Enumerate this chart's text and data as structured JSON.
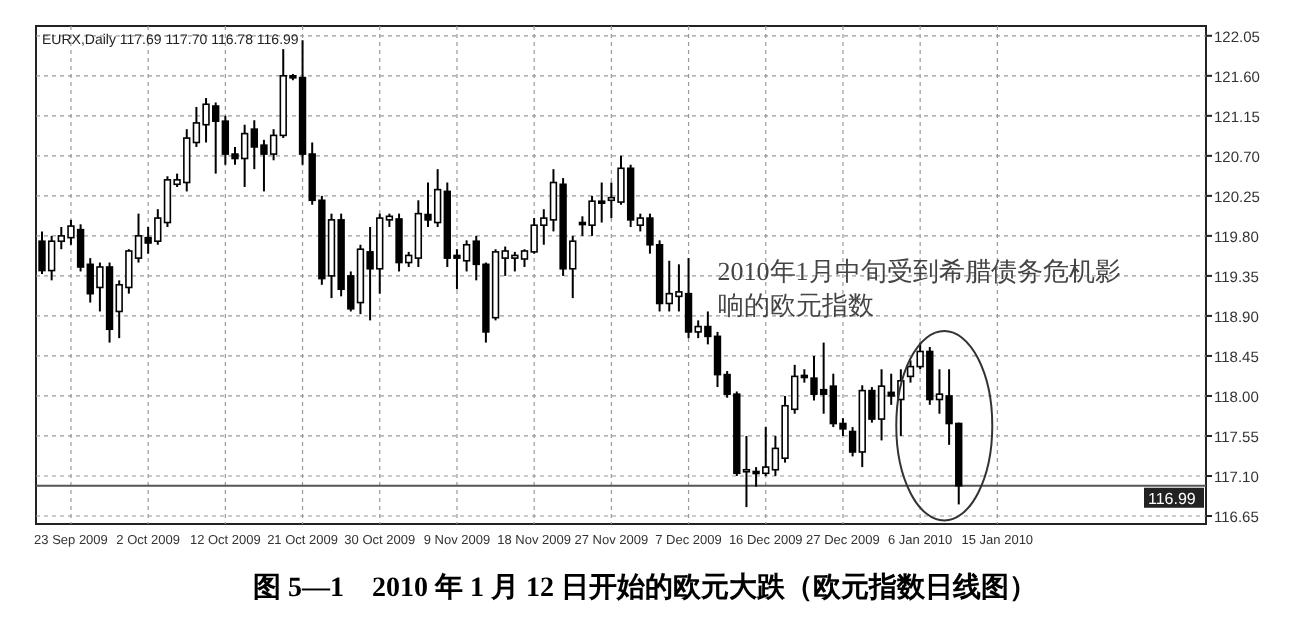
{
  "chart_data": {
    "type": "candlestick",
    "title": "图 5—1　2010 年 1 月 12 日开始的欧元大跌（欧元指数日线图）",
    "annotations": [
      "EURX,Daily 117.69 117.70 116.78 116.99",
      "2010年1月中旬受到希腊债务危机影响的欧元指数"
    ],
    "categories": [
      null,
      null,
      null,
      "23 Sep 2009",
      null,
      null,
      null,
      null,
      null,
      null,
      null,
      "2 Oct 2009",
      null,
      null,
      null,
      null,
      null,
      null,
      null,
      "12 Oct 2009",
      null,
      null,
      null,
      null,
      null,
      null,
      null,
      "21 Oct 2009",
      null,
      null,
      null,
      null,
      null,
      null,
      null,
      "30 Oct 2009",
      null,
      null,
      null,
      null,
      null,
      null,
      null,
      "9 Nov 2009",
      null,
      null,
      null,
      null,
      null,
      null,
      null,
      "18 Nov 2009",
      null,
      null,
      null,
      null,
      null,
      null,
      null,
      "27 Nov 2009",
      null,
      null,
      null,
      null,
      null,
      null,
      null,
      "7 Dec 2009",
      null,
      null,
      null,
      null,
      null,
      null,
      null,
      "16 Dec 2009",
      null,
      null,
      null,
      null,
      null,
      null,
      null,
      "27 Dec 2009",
      null,
      null,
      null,
      null,
      null,
      null,
      null,
      "6 Jan 2010",
      null,
      null,
      null,
      null,
      null,
      null,
      null,
      "15 Jan 2010",
      null,
      null,
      null,
      null,
      null,
      null,
      null,
      null,
      null,
      null,
      null,
      null,
      null,
      null,
      null,
      null,
      null,
      null,
      null,
      null,
      null
    ],
    "ohlc": [
      [
        119.74,
        119.85,
        119.37,
        119.41
      ],
      [
        119.41,
        119.8,
        119.3,
        119.74
      ],
      [
        119.74,
        119.9,
        119.65,
        119.8
      ],
      [
        119.78,
        119.98,
        119.7,
        119.91
      ],
      [
        119.87,
        119.93,
        119.4,
        119.45
      ],
      [
        119.48,
        119.55,
        119.05,
        119.15
      ],
      [
        119.22,
        119.5,
        118.95,
        119.45
      ],
      [
        119.45,
        119.5,
        118.6,
        118.75
      ],
      [
        118.95,
        119.3,
        118.65,
        119.25
      ],
      [
        119.22,
        119.65,
        119.15,
        119.63
      ],
      [
        119.55,
        120.05,
        119.5,
        119.8
      ],
      [
        119.78,
        119.9,
        119.6,
        119.72
      ],
      [
        119.74,
        120.1,
        119.7,
        120
      ],
      [
        119.95,
        120.47,
        119.9,
        120.43
      ],
      [
        120.38,
        120.5,
        120.35,
        120.43
      ],
      [
        120.4,
        121,
        120.3,
        120.9
      ],
      [
        120.85,
        121.25,
        120.8,
        121.07
      ],
      [
        121.05,
        121.35,
        120.85,
        121.28
      ],
      [
        121.26,
        121.3,
        120.5,
        121.09
      ],
      [
        121.09,
        121.15,
        120.6,
        120.72
      ],
      [
        120.72,
        120.8,
        120.6,
        120.67
      ],
      [
        120.67,
        121.05,
        120.35,
        120.95
      ],
      [
        121,
        121.1,
        120.55,
        120.8
      ],
      [
        120.82,
        120.88,
        120.3,
        120.72
      ],
      [
        120.72,
        121,
        120.65,
        120.93
      ],
      [
        120.93,
        121.9,
        120.9,
        121.6
      ],
      [
        121.6,
        121.62,
        121.55,
        121.58
      ],
      [
        121.58,
        122,
        120.6,
        120.72
      ],
      [
        120.72,
        120.85,
        120.15,
        120.2
      ],
      [
        120.2,
        120.25,
        119.25,
        119.32
      ],
      [
        119.35,
        120.05,
        119.1,
        119.98
      ],
      [
        119.98,
        120.05,
        119.12,
        119.2
      ],
      [
        119.35,
        119.4,
        118.95,
        118.98
      ],
      [
        119.05,
        119.7,
        118.92,
        119.65
      ],
      [
        119.62,
        119.9,
        118.85,
        119.43
      ],
      [
        119.43,
        120.05,
        119.15,
        120
      ],
      [
        119.98,
        120.05,
        119.9,
        120.02
      ],
      [
        119.99,
        120.05,
        119.4,
        119.5
      ],
      [
        119.5,
        119.62,
        119.45,
        119.58
      ],
      [
        119.55,
        120.2,
        119.45,
        120.05
      ],
      [
        120.04,
        120.4,
        119.9,
        119.98
      ],
      [
        119.95,
        120.55,
        119.9,
        120.32
      ],
      [
        120.3,
        120.4,
        119.45,
        119.55
      ],
      [
        119.58,
        119.65,
        119.2,
        119.55
      ],
      [
        119.52,
        119.75,
        119.4,
        119.7
      ],
      [
        119.74,
        119.8,
        119.3,
        119.48
      ],
      [
        119.48,
        119.5,
        118.6,
        118.72
      ],
      [
        118.88,
        119.65,
        118.85,
        119.62
      ],
      [
        119.55,
        119.68,
        119.35,
        119.63
      ],
      [
        119.55,
        119.62,
        119.4,
        119.58
      ],
      [
        119.54,
        119.65,
        119.45,
        119.63
      ],
      [
        119.62,
        120,
        119.6,
        119.92
      ],
      [
        119.92,
        120.1,
        119.7,
        120
      ],
      [
        119.98,
        120.55,
        119.85,
        120.4
      ],
      [
        120.38,
        120.45,
        119.35,
        119.43
      ],
      [
        119.43,
        119.8,
        119.1,
        119.74
      ],
      [
        119.95,
        120.02,
        119.8,
        119.93
      ],
      [
        119.92,
        120.25,
        119.8,
        120.19
      ],
      [
        120.19,
        120.4,
        119.95,
        120.17
      ],
      [
        120.2,
        120.4,
        120,
        120.23
      ],
      [
        120.18,
        120.7,
        120.15,
        120.56
      ],
      [
        120.56,
        120.6,
        119.9,
        119.98
      ],
      [
        119.92,
        120.05,
        119.85,
        120
      ],
      [
        120,
        120.05,
        119.6,
        119.7
      ],
      [
        119.7,
        119.75,
        118.95,
        119.04
      ],
      [
        119.04,
        119.52,
        118.95,
        119.15
      ],
      [
        119.12,
        119.48,
        118.95,
        119.17
      ],
      [
        119.15,
        119.55,
        118.65,
        118.72
      ],
      [
        118.72,
        118.85,
        118.65,
        118.78
      ],
      [
        118.78,
        118.95,
        118.58,
        118.67
      ],
      [
        118.67,
        118.72,
        118.1,
        118.24
      ],
      [
        118.24,
        118.28,
        117.98,
        118.02
      ],
      [
        118.02,
        118.05,
        117.1,
        117.13
      ],
      [
        117.15,
        117.55,
        116.75,
        117.17
      ],
      [
        117.15,
        117.2,
        116.98,
        117.13
      ],
      [
        117.13,
        117.65,
        117.1,
        117.2
      ],
      [
        117.17,
        117.55,
        117.1,
        117.41
      ],
      [
        117.3,
        118,
        117.25,
        117.89
      ],
      [
        117.85,
        118.35,
        117.8,
        118.22
      ],
      [
        118.23,
        118.3,
        118.15,
        118.21
      ],
      [
        118.2,
        118.45,
        117.95,
        118.02
      ],
      [
        118.07,
        118.6,
        117.8,
        118.02
      ],
      [
        118.11,
        118.25,
        117.65,
        117.69
      ],
      [
        117.69,
        117.75,
        117.55,
        117.63
      ],
      [
        117.6,
        117.65,
        117.32,
        117.37
      ],
      [
        117.37,
        118.12,
        117.2,
        118.06
      ],
      [
        118.06,
        118.1,
        117.7,
        117.74
      ],
      [
        117.74,
        118.3,
        117.5,
        118.11
      ],
      [
        118.04,
        118.25,
        117.9,
        118
      ],
      [
        117.96,
        118.3,
        117.55,
        118.17
      ],
      [
        118.22,
        118.4,
        118.15,
        118.33
      ],
      [
        118.33,
        118.6,
        118.3,
        118.5
      ],
      [
        118.5,
        118.55,
        117.9,
        117.96
      ],
      [
        117.96,
        118.3,
        117.8,
        118.02
      ],
      [
        118,
        118.3,
        117.45,
        117.69
      ],
      [
        117.69,
        117.7,
        116.78,
        116.99
      ],
      null,
      null,
      null,
      null,
      null,
      null,
      null,
      null,
      null,
      null,
      null,
      null,
      null,
      null,
      null,
      null,
      null,
      null,
      null,
      null,
      null,
      null,
      null,
      null,
      null
    ],
    "color": "#000000",
    "ylim": [
      116.56,
      122.16
    ],
    "yticks": [
      122.05,
      {
        "value": 121.6,
        "label": "121.60"
      },
      121.15,
      {
        "value": 120.7,
        "label": "120.70"
      },
      120.25,
      {
        "value": 119.8,
        "label": "119.80"
      },
      119.35,
      {
        "value": 118.9,
        "label": "118.90"
      },
      118.45,
      {
        "value": 118,
        "label": "118.00"
      },
      117.55,
      {
        "value": 117.1,
        "label": "117.10"
      },
      116.65
    ],
    "ref_lines": [
      {
        "axis": "y",
        "value": 116.99,
        "label": "116.99",
        "color": "#555555"
      }
    ],
    "grid": true
  }
}
